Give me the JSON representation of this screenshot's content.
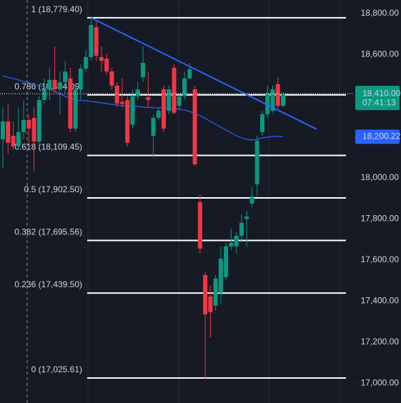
{
  "chart_data": {
    "type": "candlestick",
    "ylim": [
      16904,
      18866
    ],
    "yticks": [
      {
        "value": 18800,
        "label": "18,800.00"
      },
      {
        "value": 18600,
        "label": "18,600.00"
      },
      {
        "value": 18400,
        "label": "18,400.00"
      },
      {
        "value": 18200,
        "label": "18,200.00"
      },
      {
        "value": 18000,
        "label": "18,000.00"
      },
      {
        "value": 17800,
        "label": "17,800.00"
      },
      {
        "value": 17600,
        "label": "17,600.00"
      },
      {
        "value": 17400,
        "label": "17,400.00"
      },
      {
        "value": 17200,
        "label": "17,200.00"
      },
      {
        "value": 17000,
        "label": "17,000.00"
      }
    ],
    "up_color": "#089981",
    "down_color": "#f23645",
    "open": [
      18188,
      18275,
      18205,
      18153,
      18223,
      18282,
      18292,
      18177,
      18379,
      18431,
      18477,
      18431,
      18466,
      18484,
      18240,
      18431,
      18532,
      18588,
      18734,
      18588,
      18581,
      18518,
      18449,
      18370,
      18379,
      18258,
      18397,
      18490,
      18393,
      18205,
      18292,
      18431,
      18327,
      18536,
      18351,
      18397,
      18484,
      18431,
      17882,
      17527,
      17423,
      17378,
      17440,
      17517,
      17666,
      17666,
      17718,
      17800,
      17875,
      17969,
      18223,
      18310,
      18327,
      18456,
      18351
    ],
    "high": [
      18344,
      18362,
      18275,
      18344,
      18379,
      18310,
      18344,
      18397,
      18484,
      18536,
      18640,
      18518,
      18570,
      18536,
      18449,
      18553,
      18623,
      18779,
      18762,
      18640,
      18605,
      18536,
      18466,
      18484,
      18397,
      18431,
      18466,
      18640,
      18518,
      18310,
      18344,
      18449,
      18449,
      18553,
      18414,
      18518,
      18560,
      18449,
      17920,
      17545,
      17475,
      17527,
      17666,
      17684,
      17753,
      17736,
      17823,
      17840,
      17955,
      18205,
      18327,
      18449,
      18449,
      18490,
      18414
    ],
    "low": [
      18049,
      18118,
      18136,
      18136,
      18188,
      18171,
      18031,
      18153,
      18362,
      18379,
      18414,
      18310,
      18414,
      18223,
      18223,
      18379,
      18518,
      18570,
      18570,
      18518,
      18501,
      18431,
      18344,
      18344,
      18153,
      18240,
      18379,
      18466,
      18344,
      18101,
      18282,
      18223,
      18310,
      18310,
      18327,
      18379,
      18501,
      18059,
      17632,
      17023,
      17224,
      17353,
      17388,
      17503,
      17649,
      17632,
      17684,
      17666,
      17858,
      17910,
      18205,
      18292,
      18317,
      18337,
      18344
    ],
    "close": [
      18275,
      18171,
      18153,
      18223,
      18282,
      18240,
      18177,
      18379,
      18431,
      18477,
      18431,
      18466,
      18518,
      18240,
      18431,
      18532,
      18588,
      18744,
      18595,
      18570,
      18518,
      18449,
      18362,
      18360,
      18171,
      18397,
      18431,
      18560,
      18379,
      18292,
      18327,
      18240,
      18431,
      18317,
      18397,
      18484,
      18529,
      18066,
      17656,
      17336,
      17346,
      17510,
      17607,
      17666,
      17684,
      17718,
      17781,
      17812,
      17910,
      18181,
      18310,
      18414,
      18431,
      18351,
      18410
    ],
    "ma": {
      "color": "#2962ff",
      "values": [
        18497,
        18490,
        18484,
        18477,
        18470,
        18463,
        18456,
        18449,
        18442,
        18431,
        18421,
        18410,
        18397,
        18386,
        18379,
        18376,
        18376,
        18372,
        18369,
        18365,
        18362,
        18358,
        18355,
        18351,
        18351,
        18348,
        18348,
        18344,
        18344,
        18341,
        18341,
        18341,
        18337,
        18337,
        18334,
        18330,
        18324,
        18313,
        18303,
        18289,
        18275,
        18261,
        18247,
        18233,
        18219,
        18205,
        18195,
        18188,
        18184,
        18188,
        18195,
        18198,
        18202,
        18202,
        18200.22
      ]
    },
    "trendline": {
      "color": "#2962ff",
      "values": [
        18779.4,
        18237
      ]
    },
    "fib_levels": [
      {
        "value": 18779.4,
        "label": "1 (18,779.40)"
      },
      {
        "value": 18404.09,
        "label": "0.786 (18,404.09)"
      },
      {
        "value": 18109.45,
        "label": "0.618 (18,109.45)"
      },
      {
        "value": 17902.5,
        "label": "0.5 (17,902.50)"
      },
      {
        "value": 17695.56,
        "label": "0.382 (17,695.56)"
      },
      {
        "value": 17439.5,
        "label": "0.236 (17,439.50)"
      },
      {
        "value": 17025.61,
        "label": "0 (17,025.61)"
      }
    ],
    "price_tag": {
      "value": 18410,
      "label": "18,410.00",
      "countdown": "07:41:13",
      "color": "#089981"
    },
    "ma_tag": {
      "value": 18200.22,
      "label": "18,200.22",
      "color": "#2962ff"
    }
  }
}
